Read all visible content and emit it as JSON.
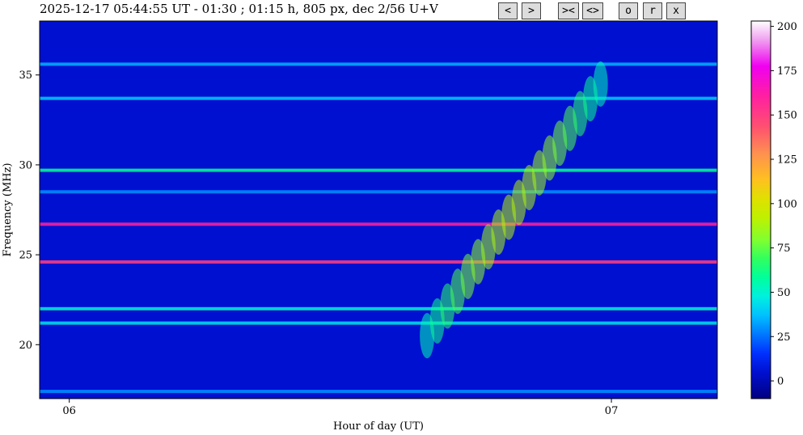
{
  "header": {
    "title": "2025-12-17 05:44:55 UT - 01:30 ; 01:15 h, 805 px, dec 2/56 U+V"
  },
  "controls": [
    {
      "label": "<"
    },
    {
      "label": ">"
    },
    {
      "label": "><"
    },
    {
      "label": "<>"
    },
    {
      "label": "o"
    },
    {
      "label": "r"
    },
    {
      "label": "x"
    }
  ],
  "chart_data": {
    "type": "heatmap",
    "xlabel": "Hour of day (UT)",
    "ylabel": "Frequency (MHz)",
    "x_ticks": [
      {
        "label": "06",
        "hour": 6.0
      },
      {
        "label": "07",
        "hour": 7.0
      }
    ],
    "xlim": [
      5.9453,
      7.1953
    ],
    "ylim": [
      17.0,
      38.0
    ],
    "y_ticks": [
      20,
      25,
      30,
      35
    ],
    "colorbar": {
      "colormap": "gist_ncar",
      "range": [
        -10,
        203
      ],
      "ticks": [
        0,
        25,
        50,
        75,
        100,
        125,
        150,
        175,
        200
      ]
    },
    "background_level": 5,
    "grid": false,
    "persistent_interference_lines_mhz": [
      {
        "freq": 24.6,
        "level": 150
      },
      {
        "freq": 26.7,
        "level": 160
      },
      {
        "freq": 29.7,
        "level": 60
      },
      {
        "freq": 22.0,
        "level": 50
      },
      {
        "freq": 21.2,
        "level": 45
      },
      {
        "freq": 33.7,
        "level": 40
      },
      {
        "freq": 35.6,
        "level": 35
      },
      {
        "freq": 28.5,
        "level": 30
      },
      {
        "freq": 17.4,
        "level": 30
      }
    ],
    "radio_burst": {
      "description": "drifting burst emission",
      "start_hour": 6.66,
      "end_hour": 6.98,
      "freq_start_mhz": 20.5,
      "freq_end_mhz": 34.5,
      "peak_level": 90
    }
  }
}
